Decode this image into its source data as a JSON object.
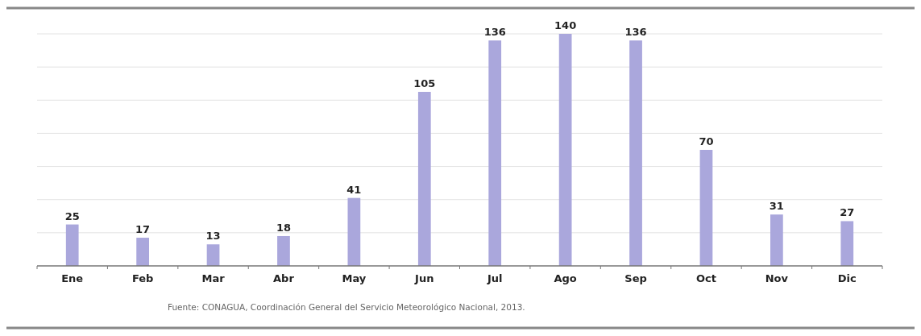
{
  "chart_data": {
    "type": "bar",
    "categories": [
      "Ene",
      "Feb",
      "Mar",
      "Abr",
      "May",
      "Jun",
      "Jul",
      "Ago",
      "Sep",
      "Oct",
      "Nov",
      "Dic"
    ],
    "values": [
      25,
      17,
      13,
      18,
      41,
      105,
      136,
      140,
      136,
      70,
      31,
      27
    ],
    "color": "#aaa7dc",
    "data_labels": true,
    "ylim": [
      0,
      140
    ],
    "yticks": [
      {
        "value": 0,
        "label": null
      },
      {
        "value": 20,
        "label": null
      },
      {
        "value": 40,
        "label": null
      },
      {
        "value": 60,
        "label": null
      },
      {
        "value": 80,
        "label": null
      },
      {
        "value": 100,
        "label": null
      },
      {
        "value": 120,
        "label": null
      },
      {
        "value": 140,
        "label": null
      }
    ],
    "grid": "y",
    "tick_labels": "x",
    "annotations": [
      "Fuente: CONAGUA, Coordinación General del Servicio Meteorológico Nacional, 2013."
    ]
  }
}
